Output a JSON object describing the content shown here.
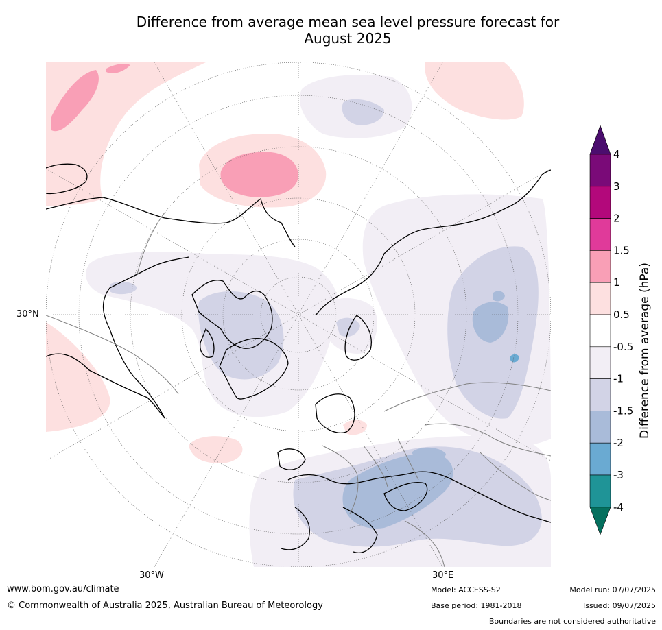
{
  "title": {
    "line1": "Difference from average mean sea level pressure forecast for",
    "line2": "August 2025"
  },
  "graticule": {
    "lat_label": "30°N",
    "lon_labels": [
      "30°W",
      "30°E"
    ]
  },
  "colorbar": {
    "label": "Difference from average (hPa)",
    "ticks": [
      "4",
      "3",
      "2",
      "1.5",
      "1",
      "0.5",
      "-0.5",
      "-1",
      "-1.5",
      "-2",
      "-3",
      "-4"
    ],
    "colors": [
      "#4b0d6e",
      "#7a0a78",
      "#b3087b",
      "#e03a9a",
      "#f99fb6",
      "#fde0e0",
      "#ffffff",
      "#f2eef5",
      "#d2d3e6",
      "#a9bbd9",
      "#6aaad2",
      "#1f9497",
      "#05705e"
    ],
    "extend_top_color": "#4b0d6e",
    "extend_bottom_color": "#05705e"
  },
  "footer": {
    "url": "www.bom.gov.au/climate",
    "copyright": "© Commonwealth of Australia 2025, Australian Bureau of Meteorology",
    "model": "Model: ACCESS-S2",
    "base_period": "Base period: 1981-2018",
    "model_run": "Model run: 07/07/2025",
    "issued": "Issued: 09/07/2025",
    "disclaimer": "Boundaries are not considered authoritative"
  },
  "colors": {
    "positive_light": "#fde0e0",
    "positive_mid": "#f99fb6",
    "negative_light": "#f2eef5",
    "negative_mid": "#d2d3e6",
    "negative_strong": "#a9bbd9",
    "negative_stronger": "#6aaad2"
  }
}
